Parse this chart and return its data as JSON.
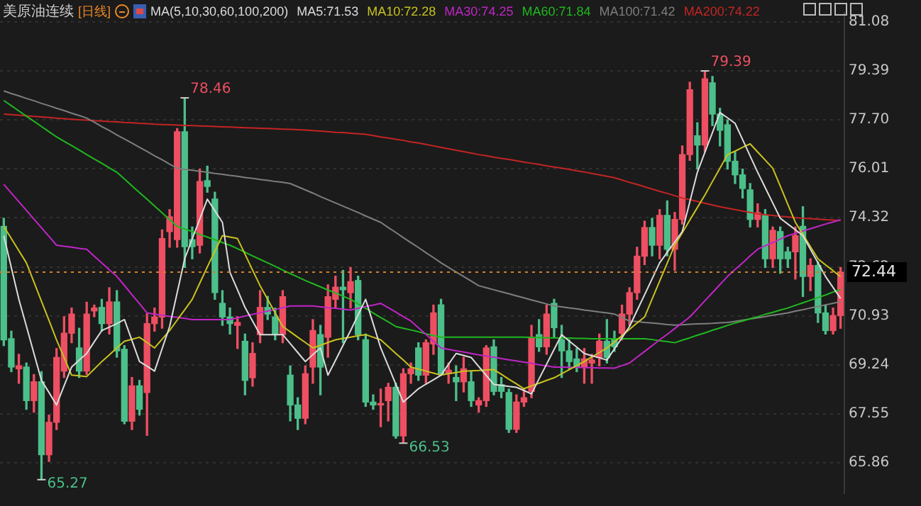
{
  "chart_data": {
    "type": "candlestick",
    "title": "美原油连续",
    "subtitle": "[日线]",
    "legend_title": "MA(5,10,30,60,100,200)",
    "legend": "top",
    "marker": "none",
    "grid": "y",
    "tick_labels": "y",
    "categories": [
      null,
      null,
      null,
      null,
      null,
      null,
      null,
      null,
      null,
      null,
      null,
      null,
      null,
      null,
      null,
      null,
      null,
      null,
      null,
      null,
      null,
      null,
      null,
      null,
      null,
      null,
      null,
      null,
      null,
      null,
      null,
      null,
      null,
      null,
      null,
      null,
      null,
      null,
      null,
      null,
      null,
      null,
      null,
      null,
      null,
      null,
      null,
      null,
      null,
      null,
      null,
      null,
      null,
      null,
      null,
      null,
      null,
      null,
      null,
      null,
      null,
      null,
      null,
      null,
      null,
      null,
      null,
      null,
      null,
      null,
      null,
      null,
      null,
      null,
      null,
      null,
      null,
      null,
      null,
      null,
      null,
      null,
      null,
      null,
      null,
      null,
      null,
      null,
      null,
      null,
      null,
      null,
      null,
      null,
      null,
      null,
      null,
      null,
      null,
      null,
      null,
      null,
      null,
      null,
      null,
      null,
      null,
      null,
      null,
      null,
      null,
      null
    ],
    "ohlc": [
      [
        74.02,
        74.3,
        69.9,
        70.1
      ],
      [
        70.14,
        70.4,
        69.0,
        69.16
      ],
      [
        69.1,
        69.6,
        68.6,
        69.2
      ],
      [
        69.16,
        69.3,
        67.7,
        68.0
      ],
      [
        68.0,
        68.9,
        67.6,
        68.65
      ],
      [
        68.65,
        69.0,
        65.27,
        66.13
      ],
      [
        66.13,
        67.5,
        65.9,
        67.25
      ],
      [
        67.25,
        69.8,
        67.0,
        69.49
      ],
      [
        69.02,
        70.9,
        68.8,
        70.33
      ],
      [
        70.33,
        71.2,
        70.0,
        70.99
      ],
      [
        69.82,
        70.5,
        68.8,
        69.02
      ],
      [
        69.02,
        71.4,
        68.9,
        70.99
      ],
      [
        71.1,
        71.3,
        70.9,
        71.2
      ],
      [
        71.22,
        71.5,
        70.4,
        70.66
      ],
      [
        70.66,
        71.9,
        70.3,
        71.41
      ],
      [
        71.41,
        71.8,
        69.5,
        69.72
      ],
      [
        69.77,
        69.9,
        67.2,
        67.29
      ],
      [
        67.29,
        68.8,
        67.0,
        68.51
      ],
      [
        68.51,
        68.7,
        67.5,
        67.7
      ],
      [
        68.28,
        71.0,
        66.8,
        70.66
      ],
      [
        70.66,
        71.2,
        70.4,
        70.89
      ],
      [
        70.89,
        73.9,
        70.5,
        73.6
      ],
      [
        73.84,
        74.6,
        73.3,
        74.35
      ],
      [
        73.56,
        77.4,
        73.3,
        77.29
      ],
      [
        77.29,
        78.46,
        72.6,
        73.32
      ],
      [
        73.56,
        74.0,
        72.9,
        73.32
      ],
      [
        73.37,
        76.0,
        73.1,
        75.57
      ],
      [
        75.6,
        76.1,
        75.2,
        75.4
      ],
      [
        74.96,
        75.2,
        71.5,
        71.73
      ],
      [
        71.36,
        71.8,
        70.6,
        70.89
      ],
      [
        70.89,
        71.2,
        70.3,
        70.66
      ],
      [
        70.6,
        70.9,
        69.8,
        70.7
      ],
      [
        70.05,
        70.3,
        68.2,
        68.7
      ],
      [
        68.79,
        70.0,
        68.5,
        69.63
      ],
      [
        70.28,
        71.8,
        70.0,
        71.22
      ],
      [
        71.22,
        71.6,
        70.8,
        70.99
      ],
      [
        70.89,
        71.2,
        70.1,
        70.28
      ],
      [
        70.28,
        71.8,
        70.0,
        71.59
      ],
      [
        68.88,
        69.2,
        67.3,
        67.85
      ],
      [
        67.85,
        68.1,
        67.0,
        67.39
      ],
      [
        67.39,
        69.2,
        67.2,
        68.93
      ],
      [
        69.16,
        70.8,
        68.6,
        70.42
      ],
      [
        70.28,
        70.6,
        68.2,
        69.16
      ],
      [
        70.19,
        72.0,
        69.5,
        71.59
      ],
      [
        71.5,
        72.3,
        71.2,
        71.92
      ],
      [
        71.92,
        72.5,
        70.0,
        71.83
      ],
      [
        71.73,
        72.6,
        71.2,
        72.11
      ],
      [
        72.15,
        72.3,
        70.1,
        70.28
      ],
      [
        70.1,
        70.3,
        67.8,
        67.95
      ],
      [
        67.95,
        68.2,
        67.7,
        67.85
      ],
      [
        67.85,
        68.4,
        67.1,
        67.9
      ],
      [
        68.0,
        68.6,
        67.3,
        68.46
      ],
      [
        68.46,
        68.6,
        66.7,
        66.78
      ],
      [
        66.78,
        69.1,
        66.53,
        68.93
      ],
      [
        68.93,
        69.3,
        68.6,
        69.1
      ],
      [
        69.82,
        70.0,
        68.7,
        68.88
      ],
      [
        68.88,
        70.1,
        68.6,
        70.0
      ],
      [
        69.96,
        71.3,
        69.6,
        71.03
      ],
      [
        71.31,
        71.5,
        68.9,
        68.93
      ],
      [
        68.95,
        69.3,
        68.6,
        69.05
      ],
      [
        68.8,
        69.2,
        68.0,
        68.65
      ],
      [
        68.65,
        69.5,
        68.3,
        69.1
      ],
      [
        68.65,
        69.0,
        67.8,
        68.0
      ],
      [
        67.85,
        68.1,
        67.6,
        68.0
      ],
      [
        68.0,
        69.9,
        67.8,
        69.82
      ],
      [
        69.86,
        70.1,
        68.2,
        68.32
      ],
      [
        68.55,
        68.8,
        68.1,
        68.32
      ],
      [
        68.28,
        68.4,
        66.9,
        67.01
      ],
      [
        67.01,
        68.2,
        66.9,
        67.95
      ],
      [
        67.95,
        68.4,
        67.8,
        68.1
      ],
      [
        68.32,
        70.6,
        68.1,
        70.19
      ],
      [
        70.28,
        70.8,
        69.7,
        69.86
      ],
      [
        69.86,
        71.3,
        69.6,
        70.99
      ],
      [
        71.36,
        71.5,
        70.2,
        70.52
      ],
      [
        70.1,
        70.6,
        68.8,
        69.72
      ],
      [
        69.72,
        70.1,
        69.1,
        69.35
      ],
      [
        69.44,
        69.8,
        69.0,
        69.16
      ],
      [
        69.16,
        69.8,
        68.6,
        69.44
      ],
      [
        69.3,
        69.6,
        68.6,
        69.4
      ],
      [
        69.49,
        70.3,
        69.2,
        70.05
      ],
      [
        70.05,
        70.8,
        69.3,
        69.49
      ],
      [
        70.1,
        70.4,
        69.7,
        69.86
      ],
      [
        70.33,
        71.3,
        70.1,
        70.99
      ],
      [
        70.99,
        71.9,
        70.6,
        71.73
      ],
      [
        71.73,
        73.3,
        71.5,
        72.99
      ],
      [
        72.99,
        74.2,
        72.7,
        73.98
      ],
      [
        73.98,
        74.3,
        73.0,
        73.37
      ],
      [
        73.37,
        74.6,
        72.9,
        74.4
      ],
      [
        74.4,
        74.9,
        73.0,
        73.23
      ],
      [
        73.23,
        74.5,
        72.5,
        74.26
      ],
      [
        74.26,
        76.8,
        74.1,
        76.5
      ],
      [
        76.5,
        79.0,
        76.3,
        78.74
      ],
      [
        77.15,
        77.6,
        76.0,
        76.83
      ],
      [
        76.83,
        79.39,
        76.6,
        79.12
      ],
      [
        78.98,
        79.2,
        77.5,
        77.9
      ],
      [
        77.9,
        78.1,
        76.8,
        77.34
      ],
      [
        77.53,
        77.7,
        76.0,
        76.27
      ],
      [
        76.27,
        76.6,
        75.5,
        75.8
      ],
      [
        75.8,
        76.0,
        75.0,
        75.33
      ],
      [
        75.28,
        75.5,
        74.0,
        74.26
      ],
      [
        74.26,
        74.8,
        74.0,
        74.49
      ],
      [
        74.4,
        74.6,
        72.6,
        72.9
      ],
      [
        72.9,
        74.0,
        72.6,
        73.88
      ],
      [
        73.84,
        74.0,
        72.4,
        72.9
      ],
      [
        73.14,
        73.3,
        72.6,
        72.9
      ],
      [
        73.14,
        74.0,
        72.2,
        73.7
      ],
      [
        74.02,
        74.7,
        71.6,
        72.29
      ],
      [
        72.29,
        72.9,
        71.8,
        72.67
      ],
      [
        72.67,
        72.8,
        70.7,
        71.03
      ],
      [
        71.03,
        71.3,
        70.3,
        70.42
      ],
      [
        70.42,
        71.2,
        70.3,
        70.94
      ],
      [
        70.94,
        72.6,
        70.5,
        72.44
      ]
    ],
    "series": [
      {
        "name": "MA5:71.53",
        "type": "line",
        "color": "#dcdcdc",
        "values": [
          73.7,
          72.6,
          71.5,
          70.57,
          69.63,
          68.7,
          68.28,
          67.85,
          68.51,
          69.16,
          69.4,
          69.63,
          70.03,
          70.42,
          70.54,
          70.66,
          70.8,
          70.08,
          69.35,
          69.19,
          69.02,
          69.79,
          70.56,
          71.73,
          72.9,
          73.59,
          74.27,
          74.96,
          74.56,
          74.16,
          72.43,
          71.83,
          71.22,
          70.75,
          70.28,
          70.28,
          70.28,
          70.28,
          69.97,
          69.66,
          69.35,
          69.59,
          69.82,
          68.88,
          69.39,
          69.91,
          70.42,
          70.96,
          71.5,
          70.66,
          69.82,
          69.2,
          68.57,
          67.95,
          68.18,
          68.41,
          68.57,
          68.72,
          68.88,
          69.26,
          69.63,
          69.56,
          69.49,
          69.18,
          68.87,
          68.56,
          68.53,
          68.49,
          68.46,
          68.35,
          68.23,
          68.75,
          69.26,
          69.77,
          70.28,
          70.06,
          69.85,
          69.63,
          69.55,
          69.48,
          69.4,
          69.79,
          70.17,
          70.56,
          71.11,
          71.66,
          72.21,
          72.76,
          73.12,
          73.48,
          73.84,
          74.87,
          75.89,
          76.58,
          77.26,
          77.95,
          77.77,
          77.58,
          77.02,
          76.45,
          75.89,
          75.36,
          74.83,
          74.3,
          74.1,
          73.9,
          73.7,
          73.23,
          72.76,
          72.29,
          71.91,
          71.53
        ]
      },
      {
        "name": "MA10:72.28",
        "type": "line",
        "color": "#c8c31e",
        "values": [
          74.02,
          73.6,
          73.18,
          72.76,
          72.1,
          71.43,
          70.77,
          70.1,
          69.49,
          68.88,
          68.86,
          68.83,
          69.09,
          69.35,
          69.58,
          69.82,
          70.05,
          70.12,
          70.19,
          70.01,
          69.82,
          70.12,
          70.42,
          70.78,
          71.14,
          71.5,
          72.06,
          72.62,
          73.16,
          73.7,
          73.65,
          73.6,
          73.06,
          72.51,
          71.97,
          71.5,
          71.03,
          70.56,
          70.38,
          70.19,
          70.01,
          69.82,
          69.91,
          70.01,
          70.1,
          70.15,
          70.19,
          70.24,
          70.28,
          70.19,
          70.1,
          69.87,
          69.63,
          69.4,
          69.16,
          69.09,
          69.02,
          68.95,
          68.88,
          68.93,
          68.97,
          69.02,
          69.03,
          69.04,
          69.06,
          69.07,
          68.91,
          68.74,
          68.58,
          68.41,
          68.51,
          68.6,
          68.7,
          68.79,
          68.93,
          69.07,
          69.21,
          69.35,
          69.51,
          69.66,
          69.82,
          70.03,
          70.25,
          70.46,
          70.68,
          70.89,
          71.51,
          72.13,
          72.75,
          73.37,
          73.8,
          74.24,
          74.67,
          75.1,
          75.57,
          76.03,
          76.5,
          76.62,
          76.75,
          76.87,
          76.59,
          76.31,
          76.03,
          75.41,
          74.78,
          74.16,
          73.74,
          73.32,
          72.9,
          72.69,
          72.49,
          72.28
        ]
      },
      {
        "name": "MA30:74.25",
        "type": "line",
        "color": "#c026c6",
        "values": [
          75.47,
          75.17,
          74.87,
          74.57,
          74.27,
          73.97,
          73.67,
          73.37,
          73.33,
          73.3,
          73.26,
          73.23,
          72.99,
          72.76,
          72.52,
          72.29,
          71.98,
          71.66,
          71.35,
          71.03,
          70.99,
          70.95,
          70.91,
          70.88,
          70.84,
          70.8,
          70.8,
          70.8,
          70.8,
          70.8,
          70.8,
          70.86,
          70.92,
          70.98,
          71.03,
          71.09,
          71.15,
          71.21,
          71.27,
          71.27,
          71.27,
          71.27,
          71.24,
          71.21,
          71.19,
          71.16,
          71.13,
          71.19,
          71.25,
          71.3,
          71.36,
          71.21,
          71.06,
          70.9,
          70.75,
          70.52,
          70.29,
          70.05,
          69.82,
          69.77,
          69.72,
          69.68,
          69.63,
          69.58,
          69.54,
          69.5,
          69.45,
          69.41,
          69.37,
          69.33,
          69.29,
          69.24,
          69.2,
          69.16,
          69.16,
          69.15,
          69.15,
          69.14,
          69.14,
          69.13,
          69.13,
          69.12,
          69.21,
          69.3,
          69.5,
          69.7,
          69.9,
          70.1,
          70.29,
          70.49,
          70.69,
          70.89,
          71.17,
          71.45,
          71.73,
          72.01,
          72.29,
          72.53,
          72.76,
          73.0,
          73.23,
          73.35,
          73.46,
          73.58,
          73.7,
          73.78,
          73.86,
          73.94,
          74.02,
          74.1,
          74.17,
          74.25
        ]
      },
      {
        "name": "MA60:71.84",
        "type": "line",
        "color": "#1fb81f",
        "values": [
          78.37,
          78.19,
          78.01,
          77.83,
          77.65,
          77.47,
          77.29,
          77.11,
          76.96,
          76.81,
          76.66,
          76.5,
          76.35,
          76.2,
          76.04,
          75.89,
          75.66,
          75.42,
          75.19,
          74.96,
          74.72,
          74.49,
          74.25,
          74.02,
          73.93,
          73.84,
          73.74,
          73.65,
          73.56,
          73.46,
          73.37,
          73.25,
          73.13,
          73.0,
          72.88,
          72.76,
          72.64,
          72.51,
          72.39,
          72.27,
          72.15,
          72.04,
          71.93,
          71.82,
          71.72,
          71.61,
          71.5,
          71.34,
          71.19,
          71.03,
          70.87,
          70.72,
          70.56,
          70.5,
          70.44,
          70.38,
          70.31,
          70.25,
          70.19,
          70.19,
          70.19,
          70.19,
          70.19,
          70.19,
          70.19,
          70.19,
          70.19,
          70.19,
          70.19,
          70.19,
          70.18,
          70.18,
          70.17,
          70.17,
          70.16,
          70.16,
          70.15,
          70.15,
          70.14,
          70.14,
          70.14,
          70.14,
          70.14,
          70.14,
          70.14,
          70.14,
          70.11,
          70.07,
          70.04,
          70.0,
          70.09,
          70.17,
          70.26,
          70.34,
          70.43,
          70.51,
          70.6,
          70.68,
          70.75,
          70.83,
          70.9,
          70.98,
          71.05,
          71.13,
          71.2,
          71.29,
          71.38,
          71.47,
          71.56,
          71.65,
          71.75,
          71.84
        ]
      },
      {
        "name": "MA100:71.42",
        "type": "line",
        "color": "#7e7e7e",
        "values": [
          78.7,
          78.61,
          78.53,
          78.44,
          78.36,
          78.27,
          78.19,
          78.1,
          78.02,
          77.93,
          77.85,
          77.76,
          77.62,
          77.47,
          77.33,
          77.18,
          77.04,
          76.9,
          76.75,
          76.61,
          76.46,
          76.32,
          76.17,
          76.03,
          75.99,
          75.96,
          75.92,
          75.89,
          75.85,
          75.82,
          75.78,
          75.75,
          75.71,
          75.68,
          75.64,
          75.61,
          75.57,
          75.54,
          75.5,
          75.39,
          75.28,
          75.17,
          75.05,
          74.94,
          74.83,
          74.72,
          74.61,
          74.5,
          74.38,
          74.27,
          74.16,
          73.98,
          73.81,
          73.63,
          73.46,
          73.29,
          73.11,
          72.94,
          72.76,
          72.6,
          72.44,
          72.29,
          72.13,
          71.97,
          71.9,
          71.83,
          71.76,
          71.69,
          71.62,
          71.55,
          71.48,
          71.41,
          71.34,
          71.27,
          71.24,
          71.2,
          71.17,
          71.13,
          71.1,
          71.06,
          71.03,
          70.99,
          70.87,
          70.75,
          70.73,
          70.7,
          70.68,
          70.66,
          70.63,
          70.61,
          70.62,
          70.64,
          70.65,
          70.66,
          70.67,
          70.69,
          70.7,
          70.74,
          70.78,
          70.82,
          70.86,
          70.9,
          70.95,
          70.99,
          71.03,
          71.09,
          71.14,
          71.2,
          71.25,
          71.31,
          71.36,
          71.42
        ]
      },
      {
        "name": "MA200:74.22",
        "type": "line",
        "color": "#c42424",
        "values": [
          77.9,
          77.88,
          77.86,
          77.84,
          77.82,
          77.8,
          77.78,
          77.76,
          77.74,
          77.72,
          77.7,
          77.69,
          77.67,
          77.66,
          77.64,
          77.63,
          77.61,
          77.6,
          77.58,
          77.57,
          77.55,
          77.54,
          77.53,
          77.52,
          77.51,
          77.5,
          77.49,
          77.48,
          77.47,
          77.46,
          77.45,
          77.44,
          77.43,
          77.42,
          77.41,
          77.4,
          77.39,
          77.38,
          77.37,
          77.36,
          77.35,
          77.33,
          77.31,
          77.29,
          77.27,
          77.26,
          77.24,
          77.22,
          77.2,
          77.16,
          77.11,
          77.07,
          77.03,
          76.99,
          76.94,
          76.9,
          76.85,
          76.8,
          76.75,
          76.7,
          76.65,
          76.6,
          76.55,
          76.5,
          76.46,
          76.41,
          76.37,
          76.33,
          76.29,
          76.24,
          76.2,
          76.16,
          76.11,
          76.07,
          76.03,
          75.99,
          75.94,
          75.9,
          75.85,
          75.8,
          75.75,
          75.7,
          75.62,
          75.54,
          75.47,
          75.39,
          75.31,
          75.23,
          75.16,
          75.08,
          75.0,
          74.94,
          74.88,
          74.82,
          74.76,
          74.7,
          74.65,
          74.6,
          74.55,
          74.5,
          74.45,
          74.42,
          74.4,
          74.37,
          74.35,
          74.32,
          74.3,
          74.29,
          74.27,
          74.25,
          74.24,
          74.22
        ]
      }
    ],
    "ylim": [
      64.8,
      81.4
    ],
    "yticks": [
      81.08,
      79.39,
      {
        "value": 77.7,
        "label": "77.70"
      },
      76.01,
      74.32,
      72.62,
      70.93,
      69.24,
      67.55,
      65.86
    ],
    "ref_lines": [
      {
        "axis": "y",
        "value": 72.44,
        "label": "72.44",
        "color": "#d08030",
        "line_style": "dotted"
      }
    ],
    "annotations": [
      "78.46",
      "79.39",
      "66.53",
      "65.27"
    ]
  }
}
